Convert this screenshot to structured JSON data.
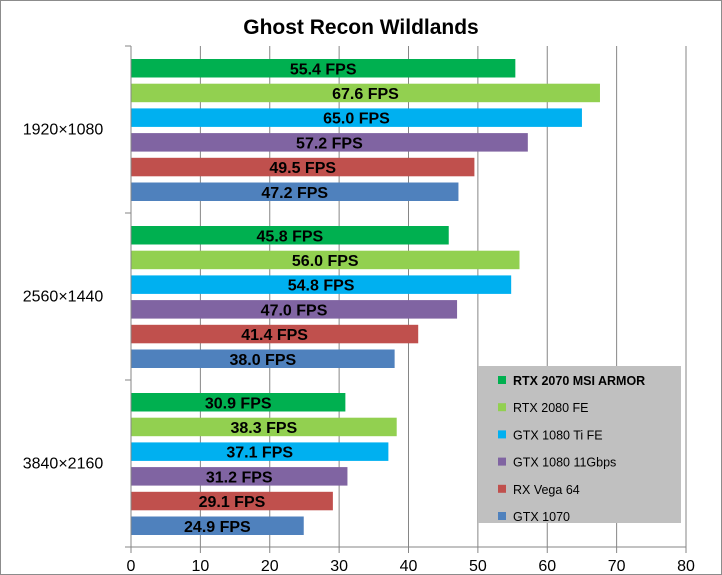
{
  "chart_data": {
    "type": "bar",
    "orientation": "horizontal",
    "title": "Ghost Recon Wildlands",
    "categories": [
      "1920×1080",
      "2560×1440",
      "3840×2160"
    ],
    "series": [
      {
        "name": "RTX 2070 MSI ARMOR",
        "color": "#00b050",
        "values": [
          55.4,
          45.8,
          30.9
        ],
        "labels": [
          "55.4 FPS",
          "45.8 FPS",
          "30.9 FPS"
        ]
      },
      {
        "name": "RTX 2080 FE",
        "color": "#92d050",
        "values": [
          67.6,
          56.0,
          38.3
        ],
        "labels": [
          "67.6 FPS",
          "56.0 FPS",
          "38.3 FPS"
        ]
      },
      {
        "name": "GTX 1080 Ti FE",
        "color": "#00b0f0",
        "values": [
          65.0,
          54.8,
          37.1
        ],
        "labels": [
          "65.0 FPS",
          "54.8 FPS",
          "37.1 FPS"
        ]
      },
      {
        "name": "GTX 1080 11Gbps",
        "color": "#8064a2",
        "values": [
          57.2,
          47.0,
          31.2
        ],
        "labels": [
          "57.2 FPS",
          "47.0 FPS",
          "31.2 FPS"
        ]
      },
      {
        "name": "RX Vega 64",
        "color": "#c0504d",
        "values": [
          49.5,
          41.4,
          29.1
        ],
        "labels": [
          "49.5 FPS",
          "41.4 FPS",
          "29.1 FPS"
        ]
      },
      {
        "name": "GTX 1070",
        "color": "#4f81bd",
        "values": [
          47.2,
          38.0,
          24.9
        ],
        "labels": [
          "47.2 FPS",
          "38.0 FPS",
          "24.9 FPS"
        ]
      }
    ],
    "xlim": [
      0,
      80
    ],
    "xticks": [
      0,
      10,
      20,
      30,
      40,
      50,
      60,
      70,
      80
    ],
    "grid": true,
    "legend_position": "bottom-right"
  }
}
